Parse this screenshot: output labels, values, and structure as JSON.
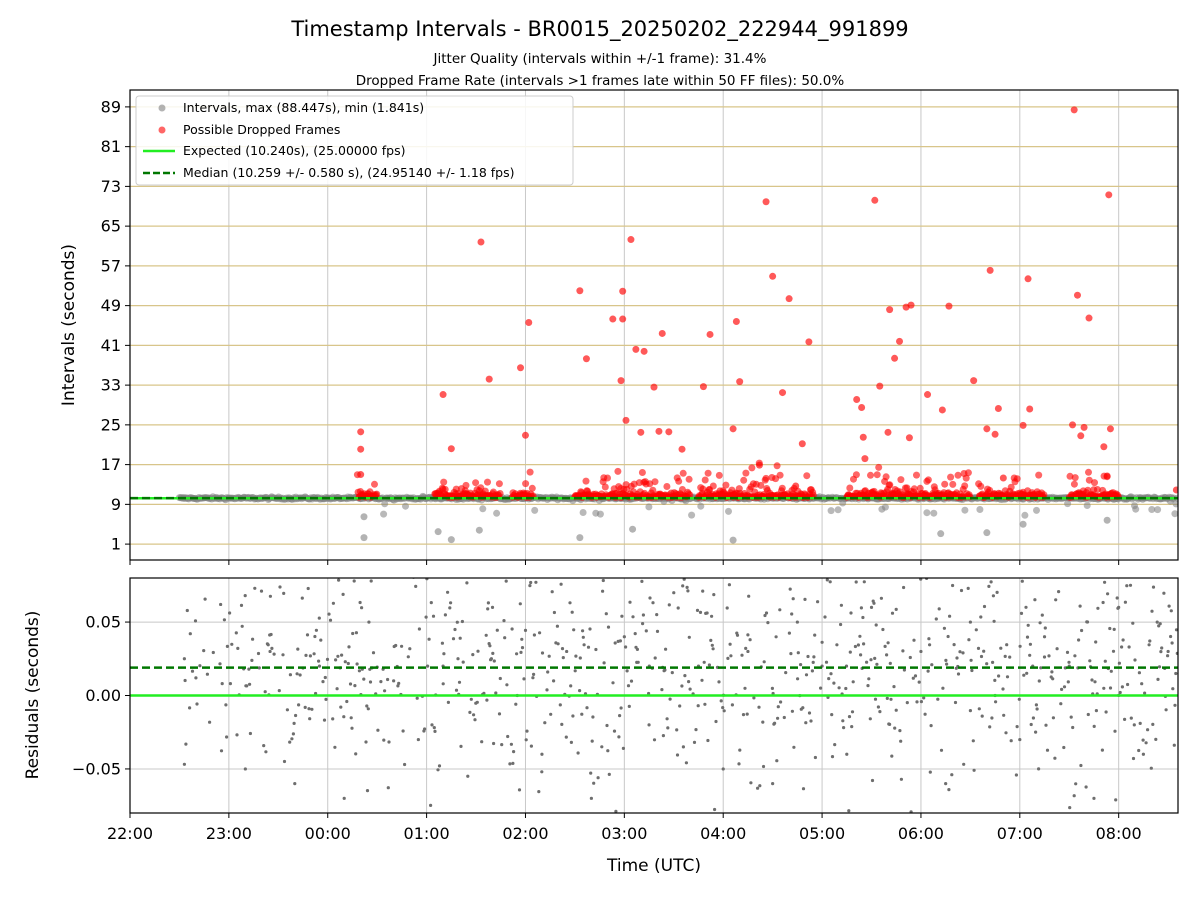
{
  "figure": {
    "title": "Timestamp Intervals - BR0015_20250202_222944_991899",
    "subtitle_1": "Jitter Quality (intervals within +/-1 frame): 31.4%",
    "subtitle_2": "Dropped Frame Rate (intervals >1 frames late within 50 FF files): 50.0%"
  },
  "colors": {
    "intervals": "#808080",
    "dropped": "#ff0000",
    "expected": "#22ee22",
    "median": "#007700",
    "hgrid_top": "#d8c58a",
    "grid": "#c8c8c8"
  },
  "chart_data": [
    {
      "type": "scatter",
      "panel": "top",
      "ylabel": "Intervals (seconds)",
      "xlabel": "",
      "xlim": [
        "22:00",
        "08:36"
      ],
      "ylim": [
        -2.2,
        92.4
      ],
      "yticks": [
        1,
        9,
        17,
        25,
        33,
        41,
        49,
        57,
        65,
        73,
        81,
        89
      ],
      "legend_position": "upper left",
      "legend": [
        {
          "label": "Intervals, max (88.447s), min (1.841s)",
          "marker": "gray-dot"
        },
        {
          "label": "Possible Dropped Frames",
          "marker": "red-dot"
        },
        {
          "label": "Expected (10.240s), (25.00000 fps)",
          "marker": "green-solid-line"
        },
        {
          "label": "Median (10.259 +/- 0.580 s), (24.95140 +/- 1.18 fps)",
          "marker": "green-dashed-line"
        }
      ],
      "expected_y": 10.24,
      "median_y": 10.259,
      "series": [
        {
          "name": "Possible Dropped Frames (notable outliers)",
          "points": [
            [
              "00:20",
              23.6
            ],
            [
              "00:20",
              20.1
            ],
            [
              "00:20",
              15.0
            ],
            [
              "01:10",
              31.1
            ],
            [
              "01:15",
              20.2
            ],
            [
              "01:33",
              61.8
            ],
            [
              "01:38",
              34.2
            ],
            [
              "01:57",
              36.5
            ],
            [
              "02:00",
              22.9
            ],
            [
              "02:02",
              45.6
            ],
            [
              "02:33",
              52.0
            ],
            [
              "02:37",
              38.3
            ],
            [
              "02:53",
              46.3
            ],
            [
              "02:58",
              33.9
            ],
            [
              "02:59",
              46.3
            ],
            [
              "02:59",
              51.9
            ],
            [
              "03:01",
              25.9
            ],
            [
              "03:04",
              62.3
            ],
            [
              "03:07",
              40.2
            ],
            [
              "03:10",
              23.5
            ],
            [
              "03:12",
              39.8
            ],
            [
              "03:18",
              32.6
            ],
            [
              "03:21",
              23.7
            ],
            [
              "03:23",
              43.4
            ],
            [
              "03:27",
              23.6
            ],
            [
              "03:35",
              20.1
            ],
            [
              "03:48",
              32.7
            ],
            [
              "03:52",
              43.2
            ],
            [
              "04:06",
              24.2
            ],
            [
              "04:08",
              45.8
            ],
            [
              "04:10",
              33.7
            ],
            [
              "04:22",
              16.9
            ],
            [
              "04:26",
              69.9
            ],
            [
              "04:30",
              54.9
            ],
            [
              "04:36",
              31.5
            ],
            [
              "04:40",
              50.4
            ],
            [
              "04:44",
              12.7
            ],
            [
              "04:48",
              21.2
            ],
            [
              "04:52",
              41.7
            ],
            [
              "05:21",
              30.1
            ],
            [
              "05:24",
              28.5
            ],
            [
              "05:25",
              22.5
            ],
            [
              "05:26",
              18.2
            ],
            [
              "05:32",
              70.2
            ],
            [
              "05:35",
              32.8
            ],
            [
              "05:40",
              23.5
            ],
            [
              "05:41",
              48.2
            ],
            [
              "05:44",
              38.4
            ],
            [
              "05:47",
              41.8
            ],
            [
              "05:51",
              48.7
            ],
            [
              "05:53",
              22.4
            ],
            [
              "05:54",
              49.1
            ],
            [
              "06:04",
              31.1
            ],
            [
              "06:13",
              28.0
            ],
            [
              "06:17",
              48.9
            ],
            [
              "06:32",
              33.9
            ],
            [
              "06:40",
              24.2
            ],
            [
              "06:42",
              56.1
            ],
            [
              "06:45",
              23.1
            ],
            [
              "06:47",
              28.3
            ],
            [
              "06:50",
              14.3
            ],
            [
              "07:02",
              24.9
            ],
            [
              "07:05",
              54.4
            ],
            [
              "07:06",
              28.2
            ],
            [
              "07:32",
              25.0
            ],
            [
              "07:33",
              88.4
            ],
            [
              "07:35",
              51.1
            ],
            [
              "07:37",
              22.8
            ],
            [
              "07:39",
              24.5
            ],
            [
              "07:42",
              46.5
            ],
            [
              "07:51",
              20.6
            ],
            [
              "07:53",
              14.7
            ],
            [
              "07:54",
              71.3
            ],
            [
              "07:55",
              24.2
            ],
            [
              "08:35",
              11.9
            ]
          ]
        }
      ]
    },
    {
      "type": "scatter",
      "panel": "bottom",
      "ylabel": "Residuals (seconds)",
      "xlabel": "Time (UTC)",
      "xlim": [
        "22:00",
        "08:36"
      ],
      "ylim": [
        -0.08,
        0.08
      ],
      "yticks": [
        0.05,
        0.0,
        -0.05
      ],
      "ytick_labels": [
        "0.05",
        "0.00",
        "−0.05"
      ],
      "expected_y": 0.0,
      "median_y": 0.019,
      "series": [
        {
          "name": "Residuals (sample)",
          "points": [
            [
              "22:33",
              0.025
            ],
            [
              "22:40",
              0.012
            ],
            [
              "22:55",
              0.062
            ],
            [
              "23:10",
              -0.05
            ],
            [
              "23:25",
              0.03
            ],
            [
              "23:40",
              -0.06
            ],
            [
              "23:55",
              0.02
            ],
            [
              "00:10",
              -0.07
            ],
            [
              "00:25",
              0.05
            ],
            [
              "00:40",
              0.01
            ],
            [
              "00:55",
              -0.03
            ],
            [
              "01:10",
              0.02
            ],
            [
              "01:25",
              -0.055
            ],
            [
              "01:40",
              0.06
            ],
            [
              "01:55",
              0.0
            ],
            [
              "02:10",
              -0.04
            ],
            [
              "02:25",
              0.03
            ],
            [
              "02:40",
              -0.07
            ],
            [
              "03:00",
              0.04
            ],
            [
              "03:15",
              -0.02
            ],
            [
              "03:30",
              0.07
            ],
            [
              "03:45",
              0.02
            ],
            [
              "04:00",
              -0.05
            ],
            [
              "04:15",
              0.03
            ],
            [
              "04:30",
              -0.06
            ],
            [
              "04:45",
              0.05
            ],
            [
              "05:00",
              0.02
            ],
            [
              "05:15",
              -0.04
            ],
            [
              "05:30",
              0.06
            ],
            [
              "05:45",
              -0.01
            ],
            [
              "06:00",
              0.03
            ],
            [
              "06:15",
              -0.06
            ],
            [
              "06:30",
              0.05
            ],
            [
              "06:45",
              0.0
            ],
            [
              "07:00",
              -0.03
            ],
            [
              "07:15",
              0.04
            ],
            [
              "07:30",
              0.02
            ],
            [
              "07:45",
              -0.07
            ],
            [
              "08:00",
              0.06
            ],
            [
              "08:15",
              -0.04
            ],
            [
              "08:30",
              0.03
            ]
          ]
        }
      ]
    }
  ],
  "x_axis": {
    "label": "Time (UTC)",
    "ticks": [
      "22:00",
      "23:00",
      "00:00",
      "01:00",
      "02:00",
      "03:00",
      "04:00",
      "05:00",
      "06:00",
      "07:00",
      "08:00"
    ]
  }
}
